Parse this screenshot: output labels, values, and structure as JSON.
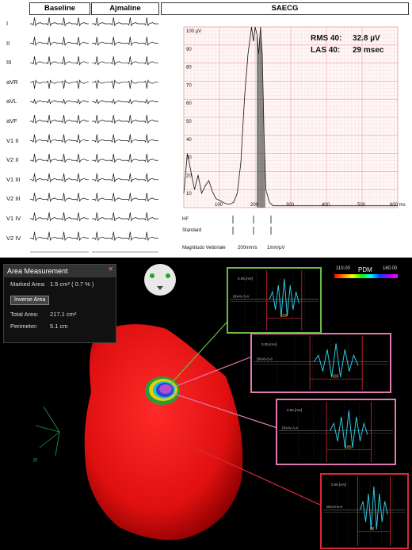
{
  "ecg": {
    "headers": {
      "baseline": "Baseline",
      "ajmaline": "Ajmaline",
      "saecg": "SAECG"
    },
    "leads": [
      "I",
      "II",
      "III",
      "aVR",
      "aVL",
      "aVF",
      "V1 II",
      "V2 II",
      "V1 III",
      "V2 III",
      "V1 IV",
      "V2 IV"
    ]
  },
  "saecg": {
    "rms_label": "RMS 40:",
    "rms_value": "32.8 µV",
    "las_label": "LAS 40:",
    "las_value": "29 msec",
    "y_ticks": [
      "100 µV",
      "90",
      "80",
      "70",
      "60",
      "50",
      "40",
      "30",
      "20",
      "10"
    ],
    "x_ticks": [
      "100",
      "200",
      "300",
      "400",
      "500",
      "600 ms"
    ],
    "hf_label": "HF",
    "standard_label": "Standard",
    "footer": {
      "left": "Magnitudo Vettoriale",
      "speed": "200mm/s",
      "scale": "1mm/µV"
    },
    "chart_data": {
      "type": "line",
      "x": [
        0,
        10,
        20,
        30,
        40,
        50,
        60,
        70,
        80,
        90,
        100,
        110,
        120,
        130,
        140,
        150,
        160,
        170,
        180,
        190,
        195,
        200,
        205,
        210,
        215,
        220,
        225,
        230,
        240,
        250,
        300,
        400,
        500,
        600
      ],
      "y": [
        8,
        30,
        20,
        10,
        18,
        8,
        12,
        15,
        9,
        5,
        4,
        3,
        2,
        2,
        3,
        8,
        25,
        60,
        85,
        100,
        92,
        100,
        96,
        85,
        100,
        85,
        40,
        10,
        3,
        1,
        1,
        1,
        1,
        1
      ],
      "xlim": [
        0,
        600
      ],
      "ylim": [
        0,
        100
      ]
    }
  },
  "map": {
    "panel_title": "Area Measurement",
    "marked_area_label": "Marked Area:",
    "marked_area_value": "1.5 cm² ( 0.7 % )",
    "inverse_button": "Inverse Area",
    "total_area_label": "Total Area:",
    "total_area_value": "217.1 cm²",
    "perimeter_label": "Perimeter:",
    "perimeter_value": "5.1 cm",
    "pdm_label": "PDM",
    "pdm_min": "110.00",
    "pdm_max": "160.00",
    "insets": [
      {
        "name": "inset-1",
        "scale": "0.05 [mV]",
        "label": "DNAV-3-4",
        "value": "329",
        "border": "#6dbb46"
      },
      {
        "name": "inset-2",
        "scale": "0.05 [mV]",
        "label": "DNAV-5-6",
        "value": "185",
        "border": "#e07ab0"
      },
      {
        "name": "inset-3",
        "scale": "0.05 [mV]",
        "label": "DNAV-3-4",
        "value": "185",
        "border": "#e07ab0"
      },
      {
        "name": "inset-4",
        "scale": "0.05 [mV]",
        "label": "DNAV-5-6",
        "value": "96",
        "border": "#d62a3b"
      }
    ],
    "orientation_label": "R"
  }
}
